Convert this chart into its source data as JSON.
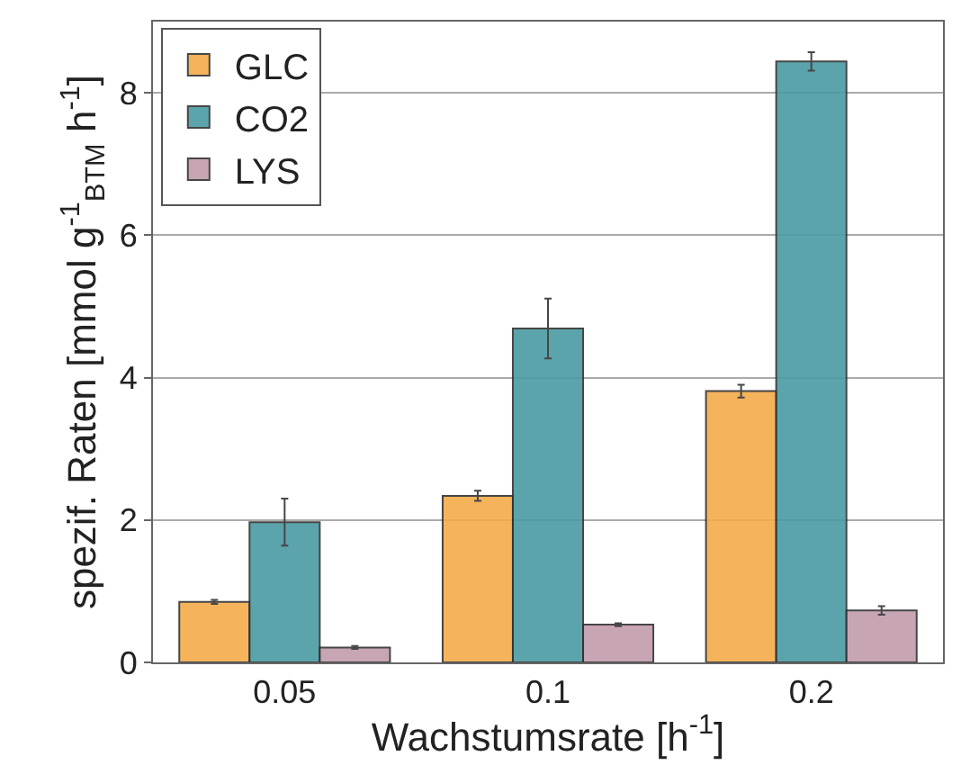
{
  "chart_data": {
    "type": "bar",
    "xlabel": "Wachstumsrate [h$^{-1}$]",
    "ylabel": "spezif. Raten [mmol g$^{-1}$$_{BTM}$ h$^{-1}$]",
    "categories": [
      "0.05",
      "0.1",
      "0.2"
    ],
    "series": [
      {
        "name": "GLC",
        "color": "#f5ab4a",
        "values": [
          0.85,
          2.34,
          3.81
        ],
        "errors": [
          0.03,
          0.07,
          0.09
        ]
      },
      {
        "name": "CO2",
        "color": "#4a9ba4",
        "values": [
          1.97,
          4.69,
          8.44
        ],
        "errors": [
          0.33,
          0.42,
          0.13
        ]
      },
      {
        "name": "LYS",
        "color": "#c39cac",
        "values": [
          0.21,
          0.53,
          0.73
        ],
        "errors": [
          0.02,
          0.02,
          0.06
        ]
      }
    ],
    "ylim": [
      0,
      9
    ],
    "yticks": [
      0,
      2,
      4,
      6,
      8
    ],
    "grid": "y",
    "legend": "top left"
  }
}
